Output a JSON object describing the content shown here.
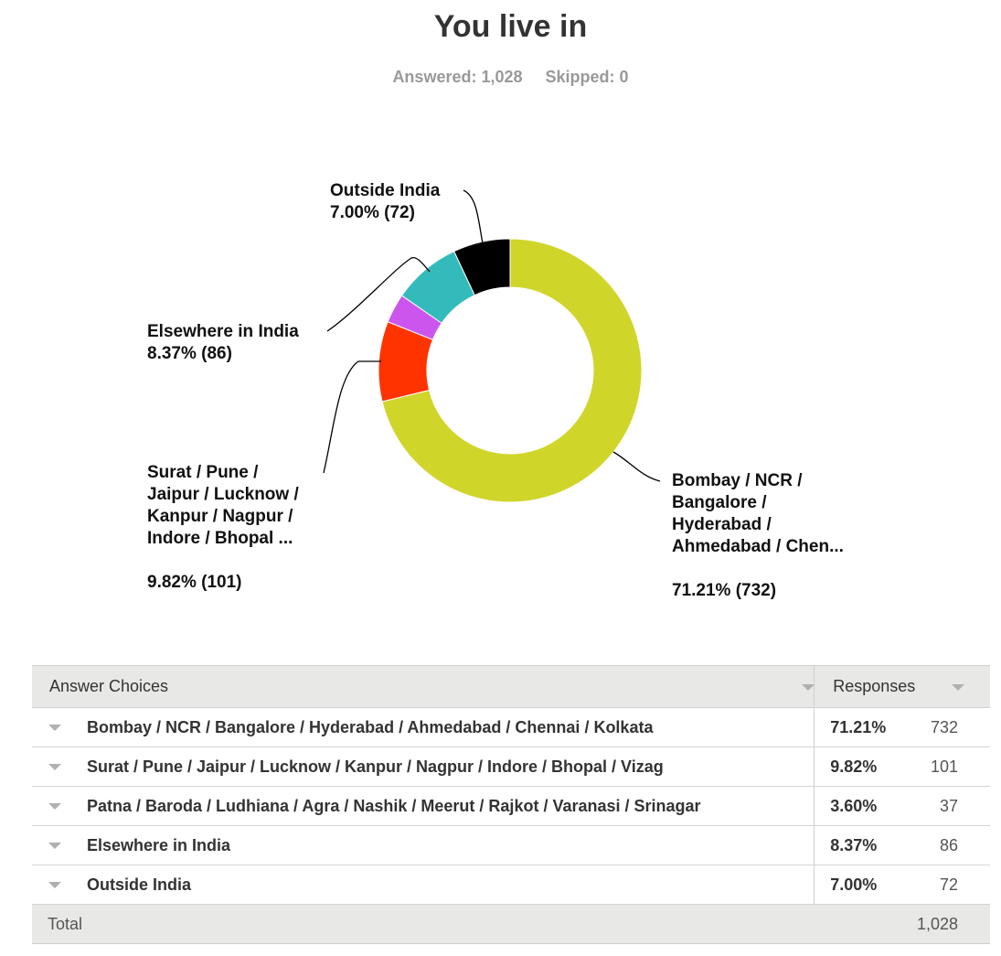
{
  "header": {
    "title": "You live in",
    "answered": "Answered: 1,028",
    "skipped": "Skipped: 0"
  },
  "chart_data": {
    "type": "pie",
    "donut": true,
    "title": "You live in",
    "slices": [
      {
        "label": "Bombay / NCR / Bangalore / Hyderabad / Ahmedabad / Chennai / Kolkata",
        "percent": 71.21,
        "count": 732,
        "color": "#d0d52a"
      },
      {
        "label": "Surat / Pune / Jaipur / Lucknow / Kanpur / Nagpur / Indore / Bhopal / Vizag",
        "percent": 9.82,
        "count": 101,
        "color": "#ff3300"
      },
      {
        "label": "Patna / Baroda / Ludhiana / Agra / Nashik / Meerut / Rajkot / Varanasi / Srinagar",
        "percent": 3.6,
        "count": 37,
        "color": "#cc55ee"
      },
      {
        "label": "Elsewhere in India",
        "percent": 8.37,
        "count": 86,
        "color": "#33bbbb"
      },
      {
        "label": "Outside India",
        "percent": 7.0,
        "count": 72,
        "color": "#000000"
      }
    ],
    "callouts": {
      "outside": {
        "label": "Outside India",
        "value": "7.00% (72)"
      },
      "elsewhere": {
        "label": "Elsewhere in India",
        "value": "8.37% (86)"
      },
      "surat": {
        "label": "Surat / Pune /\nJaipur / Lucknow /\nKanpur / Nagpur /\nIndore / Bhopal ...",
        "value": "9.82% (101)"
      },
      "bombay": {
        "label": "Bombay / NCR /\nBangalore /\nHyderabad /\nAhmedabad / Chen...",
        "value": "71.21% (732)"
      }
    }
  },
  "table": {
    "col_choices": "Answer Choices",
    "col_responses": "Responses",
    "rows": [
      {
        "label": "Bombay / NCR / Bangalore / Hyderabad / Ahmedabad / Chennai / Kolkata",
        "pct": "71.21%",
        "count": "732"
      },
      {
        "label": "Surat / Pune / Jaipur / Lucknow / Kanpur / Nagpur / Indore / Bhopal / Vizag",
        "pct": "9.82%",
        "count": "101"
      },
      {
        "label": "Patna / Baroda / Ludhiana / Agra / Nashik / Meerut / Rajkot / Varanasi / Srinagar",
        "pct": "3.60%",
        "count": "37"
      },
      {
        "label": "Elsewhere in India",
        "pct": "8.37%",
        "count": "86"
      },
      {
        "label": "Outside India",
        "pct": "7.00%",
        "count": "72"
      }
    ],
    "total_label": "Total",
    "total_value": "1,028"
  }
}
